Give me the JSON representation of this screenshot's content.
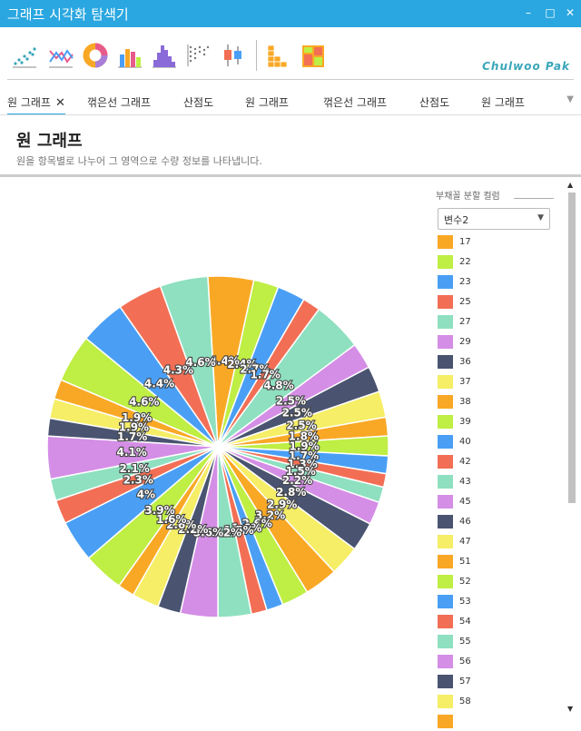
{
  "window": {
    "title": "그래프 시각화 탐색기",
    "minimize_icon": "minimize-icon",
    "maximize_icon": "maximize-icon",
    "close_icon": "close-icon"
  },
  "toolbar": {
    "icons": [
      "scatter-chart-icon",
      "line-chart-icon",
      "donut-chart-icon",
      "bar-chart-icon",
      "histogram-icon",
      "dot-plot-icon",
      "boxplot-icon",
      "stacked-bar-icon",
      "mosaic-icon"
    ],
    "brand": "Chulwoo Pak"
  },
  "tabs": [
    {
      "label": "원 그래프",
      "active": true,
      "closable": true
    },
    {
      "label": "꺾은선 그래프"
    },
    {
      "label": "산점도"
    },
    {
      "label": "원 그래프"
    },
    {
      "label": "꺾은선 그래프"
    },
    {
      "label": "산점도"
    },
    {
      "label": "원 그래프"
    }
  ],
  "header": {
    "title": "원 그래프",
    "description": "원을 항목별로 나누어 그 영역으로 수량 정보를 나타냅니다."
  },
  "panel": {
    "label": "부채꼴 분할 컬럼",
    "select_value": "변수2"
  },
  "legend": [
    {
      "label": "17",
      "color": "#f9a825"
    },
    {
      "label": "22",
      "color": "#bfee44"
    },
    {
      "label": "23",
      "color": "#4a9ff5"
    },
    {
      "label": "25",
      "color": "#f26f55"
    },
    {
      "label": "27",
      "color": "#8ee0c0"
    },
    {
      "label": "29",
      "color": "#d48ee6"
    },
    {
      "label": "36",
      "color": "#4a5470"
    },
    {
      "label": "37",
      "color": "#f5ee66"
    },
    {
      "label": "38",
      "color": "#f9a825"
    },
    {
      "label": "39",
      "color": "#bfee44"
    },
    {
      "label": "40",
      "color": "#4a9ff5"
    },
    {
      "label": "42",
      "color": "#f26f55"
    },
    {
      "label": "43",
      "color": "#8ee0c0"
    },
    {
      "label": "45",
      "color": "#d48ee6"
    },
    {
      "label": "46",
      "color": "#4a5470"
    },
    {
      "label": "47",
      "color": "#f5ee66"
    },
    {
      "label": "51",
      "color": "#f9a825"
    },
    {
      "label": "52",
      "color": "#bfee44"
    },
    {
      "label": "53",
      "color": "#4a9ff5"
    },
    {
      "label": "54",
      "color": "#f26f55"
    },
    {
      "label": "55",
      "color": "#8ee0c0"
    },
    {
      "label": "56",
      "color": "#d48ee6"
    },
    {
      "label": "57",
      "color": "#4a5470"
    },
    {
      "label": "58",
      "color": "#f5ee66"
    },
    {
      "label": "",
      "color": "#f9a825"
    }
  ],
  "chart_data": {
    "type": "pie",
    "palette": [
      "#f9a825",
      "#bfee44",
      "#4a9ff5",
      "#f26f55",
      "#8ee0c0",
      "#d48ee6",
      "#4a5470",
      "#f5ee66"
    ],
    "slices": [
      {
        "value": 4.4,
        "label": "4.4%"
      },
      {
        "value": 2.4,
        "label": "2.4%"
      },
      {
        "value": 2.7,
        "label": "2.7%"
      },
      {
        "value": 1.7,
        "label": "1.7%"
      },
      {
        "value": 4.8,
        "label": "4.8%"
      },
      {
        "value": 2.5,
        "label": "2.5%"
      },
      {
        "value": 2.5,
        "label": "2.5%"
      },
      {
        "value": 2.5,
        "label": "2.5%"
      },
      {
        "value": 1.8,
        "label": "1.8%"
      },
      {
        "value": 1.9,
        "label": "1.9%"
      },
      {
        "value": 1.7,
        "label": "1.7%"
      },
      {
        "value": 1.3,
        "label": "1.3%"
      },
      {
        "value": 1.5,
        "label": "1.5%"
      },
      {
        "value": 2.2,
        "label": "2.2%"
      },
      {
        "value": 2.8,
        "label": "2.8%"
      },
      {
        "value": 2.9,
        "label": "2.9%"
      },
      {
        "value": 3.2,
        "label": "3.2%"
      },
      {
        "value": 2.6,
        "label": "2.6%"
      },
      {
        "value": 1.6,
        "label": "1.6%"
      },
      {
        "value": 1.5,
        "label": "1.5%"
      },
      {
        "value": 3.2,
        "label": "3.2%"
      },
      {
        "value": 3.6,
        "label": "3.6%"
      },
      {
        "value": 2.2,
        "label": "2.2%"
      },
      {
        "value": 2.6,
        "label": "2.6%"
      },
      {
        "value": 1.6,
        "label": "1.6%"
      },
      {
        "value": 3.9,
        "label": "3.9%"
      },
      {
        "value": 4.0,
        "label": "4%"
      },
      {
        "value": 2.3,
        "label": "2.3%"
      },
      {
        "value": 2.1,
        "label": "2.1%"
      },
      {
        "value": 4.1,
        "label": "4.1%"
      },
      {
        "value": 1.7,
        "label": "1.7%"
      },
      {
        "value": 1.9,
        "label": "1.9%"
      },
      {
        "value": 1.9,
        "label": "1.9%"
      },
      {
        "value": 4.6,
        "label": "4.6%"
      },
      {
        "value": 4.4,
        "label": "4.4%"
      },
      {
        "value": 4.3,
        "label": "4.3%"
      },
      {
        "value": 4.6,
        "label": "4.6%"
      }
    ]
  }
}
